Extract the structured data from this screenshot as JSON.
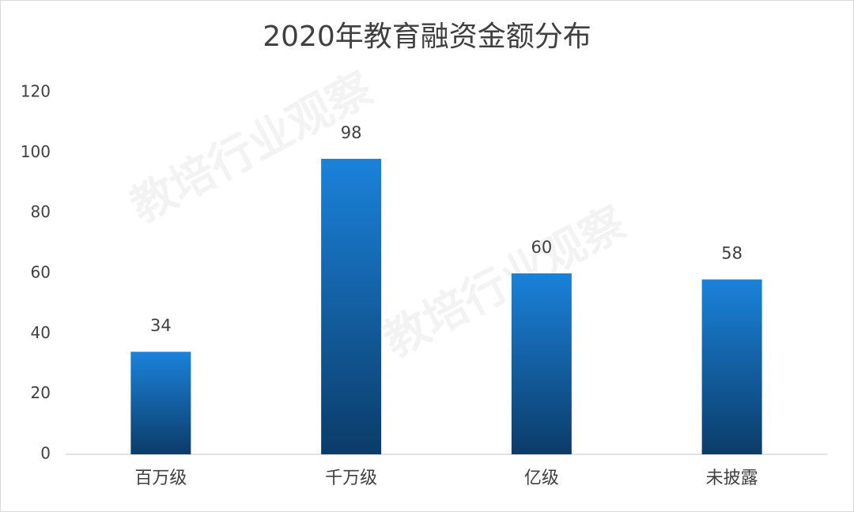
{
  "chart_data": {
    "type": "bar",
    "title": "2020年教育融资金额分布",
    "categories": [
      "百万级",
      "千万级",
      "亿级",
      "未披露"
    ],
    "values": [
      34,
      98,
      60,
      58
    ],
    "gradient": [
      "#1b82da",
      "#0b3c69"
    ],
    "ylim": [
      0,
      120
    ],
    "yticks": [
      0,
      20,
      40,
      60,
      80,
      100,
      120
    ],
    "grid": false,
    "watermark": "教培行业观察"
  }
}
